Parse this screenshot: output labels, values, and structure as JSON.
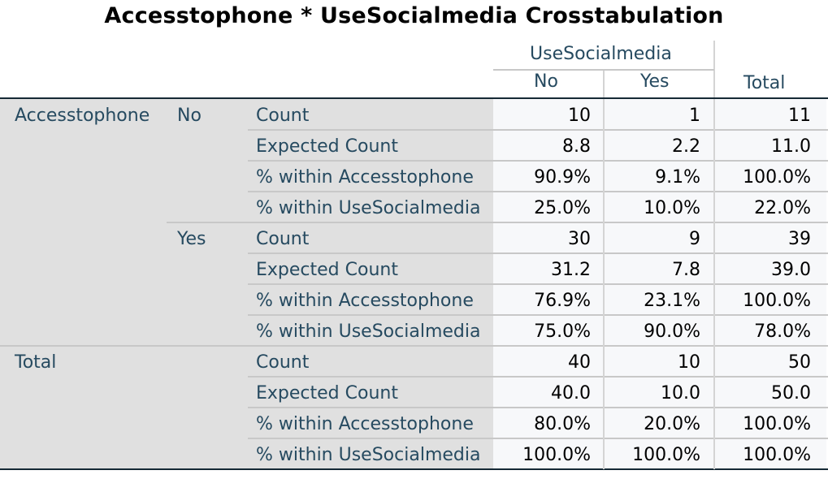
{
  "title": "Accesstophone * UseSocialmedia Crosstabulation",
  "column_group": "UseSocialmedia",
  "columns": [
    "No",
    "Yes",
    "Total"
  ],
  "row_variable": "Accesstophone",
  "groups": [
    {
      "label": "No",
      "rows": [
        {
          "stat": "Count",
          "values": [
            "10",
            "1",
            "11"
          ]
        },
        {
          "stat": "Expected Count",
          "values": [
            "8.8",
            "2.2",
            "11.0"
          ]
        },
        {
          "stat": "% within Accesstophone",
          "values": [
            "90.9%",
            "9.1%",
            "100.0%"
          ]
        },
        {
          "stat": "% within UseSocialmedia",
          "values": [
            "25.0%",
            "10.0%",
            "22.0%"
          ]
        }
      ]
    },
    {
      "label": "Yes",
      "rows": [
        {
          "stat": "Count",
          "values": [
            "30",
            "9",
            "39"
          ]
        },
        {
          "stat": "Expected Count",
          "values": [
            "31.2",
            "7.8",
            "39.0"
          ]
        },
        {
          "stat": "% within Accesstophone",
          "values": [
            "76.9%",
            "23.1%",
            "100.0%"
          ]
        },
        {
          "stat": "% within UseSocialmedia",
          "values": [
            "75.0%",
            "90.0%",
            "78.0%"
          ]
        }
      ]
    }
  ],
  "total": {
    "label": "Total",
    "rows": [
      {
        "stat": "Count",
        "values": [
          "40",
          "10",
          "50"
        ]
      },
      {
        "stat": "Expected Count",
        "values": [
          "40.0",
          "10.0",
          "50.0"
        ]
      },
      {
        "stat": "% within Accesstophone",
        "values": [
          "80.0%",
          "20.0%",
          "100.0%"
        ]
      },
      {
        "stat": "% within UseSocialmedia",
        "values": [
          "100.0%",
          "100.0%",
          "100.0%"
        ]
      }
    ]
  }
}
